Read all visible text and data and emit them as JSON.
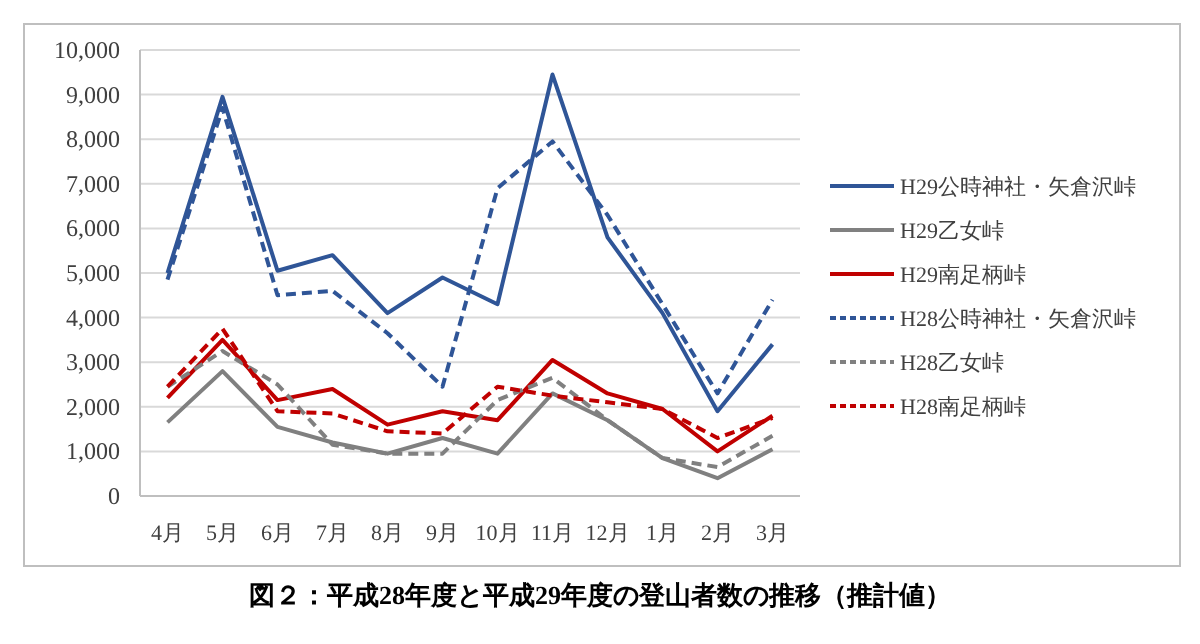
{
  "chart_data": {
    "type": "line",
    "title": "図２：平成28年度と平成29年度の登山者数の推移（推計値）",
    "categories": [
      "4月",
      "5月",
      "6月",
      "7月",
      "8月",
      "9月",
      "10月",
      "11月",
      "12月",
      "1月",
      "2月",
      "3月"
    ],
    "ylim": [
      0,
      10000
    ],
    "yticks": [
      {
        "value": 0,
        "label": "0"
      },
      {
        "value": 1000,
        "label": "1,000"
      },
      {
        "value": 2000,
        "label": "2,000"
      },
      {
        "value": 3000,
        "label": "3,000"
      },
      {
        "value": 4000,
        "label": "4,000"
      },
      {
        "value": 5000,
        "label": "5,000"
      },
      {
        "value": 6000,
        "label": "6,000"
      },
      {
        "value": 7000,
        "label": "7,000"
      },
      {
        "value": 8000,
        "label": "8,000"
      },
      {
        "value": 9000,
        "label": "9,000"
      },
      {
        "value": 10000,
        "label": "10,000"
      }
    ],
    "grid": "y",
    "legend": "right",
    "marker": "none",
    "series": [
      {
        "name": "H29公時神社・矢倉沢峠",
        "color": "#2f5597",
        "line_style": "solid",
        "values": [
          5000,
          8950,
          5050,
          5400,
          4100,
          4900,
          4300,
          9450,
          5800,
          4100,
          1900,
          3400
        ]
      },
      {
        "name": "H29乙女峠",
        "color": "#808080",
        "line_style": "solid",
        "values": [
          1650,
          2800,
          1550,
          1200,
          950,
          1300,
          950,
          2300,
          1700,
          850,
          400,
          1050
        ]
      },
      {
        "name": "H29南足柄峠",
        "color": "#c00000",
        "line_style": "solid",
        "values": [
          2200,
          3500,
          2150,
          2400,
          1600,
          1900,
          1700,
          3050,
          2300,
          1950,
          1000,
          1800
        ]
      },
      {
        "name": "H28公時神社・矢倉沢峠",
        "color": "#2f5597",
        "line_style": "dashed",
        "values": [
          4850,
          8700,
          4500,
          4600,
          3650,
          2450,
          6900,
          7950,
          6300,
          4300,
          2300,
          4400
        ]
      },
      {
        "name": "H28乙女峠",
        "color": "#808080",
        "line_style": "dashed",
        "values": [
          2450,
          3250,
          2500,
          1150,
          950,
          950,
          2150,
          2650,
          1700,
          850,
          650,
          1350
        ]
      },
      {
        "name": "H28南足柄峠",
        "color": "#c00000",
        "line_style": "dashed",
        "values": [
          2450,
          3750,
          1900,
          1850,
          1450,
          1400,
          2450,
          2250,
          2100,
          1950,
          1300,
          1750
        ]
      }
    ]
  }
}
